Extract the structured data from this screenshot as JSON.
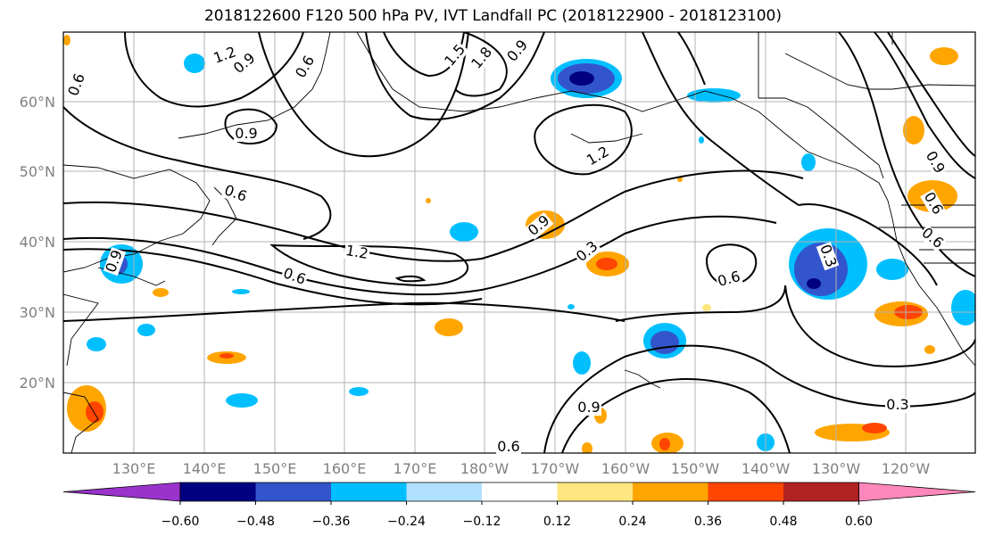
{
  "title": "2018122600 F120 500 hPa PV, IVT Landfall PC (2018122900 - 2018123100)",
  "lat_labels": [
    "60°N",
    "50°N",
    "40°N",
    "30°N",
    "20°N"
  ],
  "lon_labels": [
    "130°E",
    "140°E",
    "150°E",
    "160°E",
    "170°E",
    "180°W",
    "170°W",
    "160°W",
    "150°W",
    "140°W",
    "130°W",
    "120°W"
  ],
  "contour_labels": [
    "0.6",
    "1.2",
    "0.9",
    "0.6",
    "1.5",
    "1.8",
    "0.9",
    "0.9",
    "1.2",
    "0.6",
    "0.9",
    "1.2",
    "0.6",
    "0.3",
    "0.9",
    "0.3",
    "0.6",
    "0.9",
    "0.6",
    "0.6",
    "0.3",
    "0.9",
    "0.6"
  ],
  "colorbar": {
    "ticks": [
      "−0.60",
      "−0.48",
      "−0.36",
      "−0.24",
      "−0.12",
      "0.12",
      "0.24",
      "0.36",
      "0.48",
      "0.60"
    ],
    "colors": [
      "#9933cc",
      "#000080",
      "#3355cc",
      "#00bfff",
      "#b0e0ff",
      "#ffffff",
      "#ffe680",
      "#ffa500",
      "#ff4500",
      "#b22222",
      "#ff88bb"
    ]
  }
}
